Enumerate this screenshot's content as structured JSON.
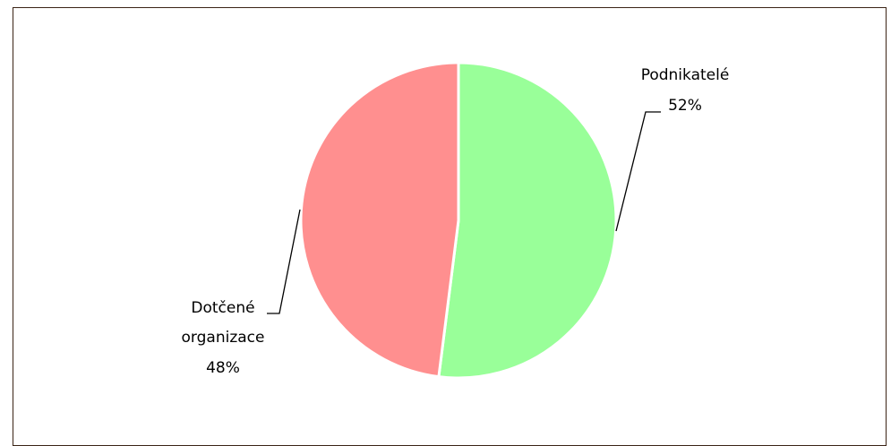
{
  "chart_data": {
    "type": "pie",
    "title": "",
    "slices": [
      {
        "label": "Podnikatelé",
        "value": 52,
        "value_label": "52%",
        "color": "#99ff99"
      },
      {
        "label_lines": [
          "Dotčené",
          "organizace"
        ],
        "value": 48,
        "value_label": "48%",
        "color": "#ff8f8f"
      }
    ],
    "start_angle_deg": 0,
    "direction": "clockwise",
    "legend": "none",
    "slice_border_color": "#ffffff",
    "leader_line_color": "#000000"
  },
  "frame": {
    "border_color": "#3b2416"
  }
}
